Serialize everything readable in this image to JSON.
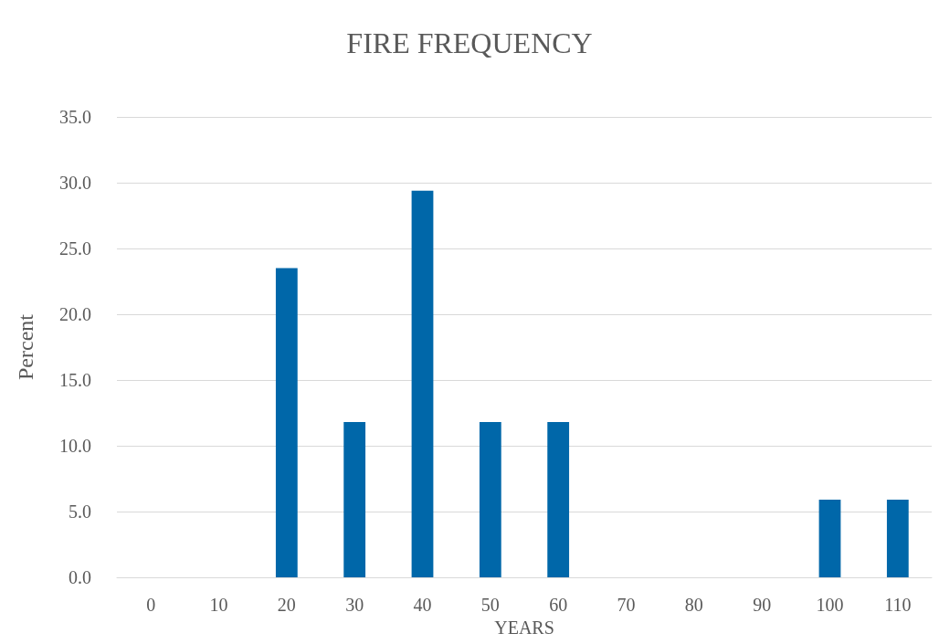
{
  "chart_data": {
    "type": "bar",
    "title": "FIRE FREQUENCY",
    "xlabel": "YEARS",
    "ylabel": "Percent",
    "categories": [
      "0",
      "10",
      "20",
      "30",
      "40",
      "50",
      "60",
      "70",
      "80",
      "90",
      "100",
      "110"
    ],
    "values": [
      0,
      0,
      23.5,
      11.8,
      29.4,
      11.8,
      11.8,
      0,
      0,
      0,
      5.9,
      5.9
    ],
    "color": "#0067a9",
    "ylim": [
      0,
      35
    ],
    "yticks": [
      {
        "value": 0,
        "label": "0.0"
      },
      {
        "value": 5,
        "label": "5.0"
      },
      {
        "value": 10,
        "label": "10.0"
      },
      {
        "value": 15,
        "label": "15.0"
      },
      {
        "value": 20,
        "label": "20.0"
      },
      {
        "value": 25,
        "label": "25.0"
      },
      {
        "value": 30,
        "label": "30.0"
      },
      {
        "value": 35,
        "label": "35.0"
      }
    ],
    "grid": "y"
  }
}
